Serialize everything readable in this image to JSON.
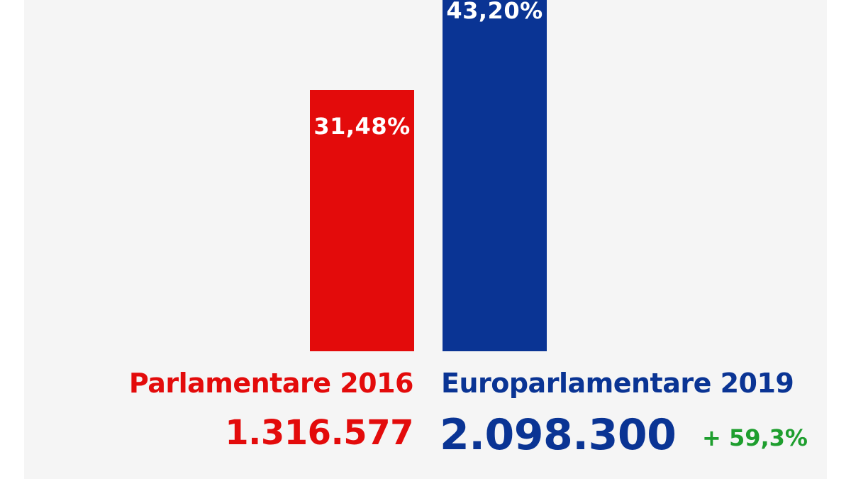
{
  "chart_data": {
    "type": "bar",
    "categories": [
      "Parlamentare 2016",
      "Europarlamentare 2019"
    ],
    "values": [
      31.48,
      43.2
    ],
    "value_labels": [
      "31,48%",
      "43,20%"
    ],
    "votes": [
      "1.316.577",
      "2.098.300"
    ],
    "growth_label": "+ 59,3%",
    "colors": [
      "#e30b0b",
      "#0a3494"
    ],
    "growth_color": "#1e9e2e",
    "ylim": [
      0,
      43.2
    ]
  }
}
